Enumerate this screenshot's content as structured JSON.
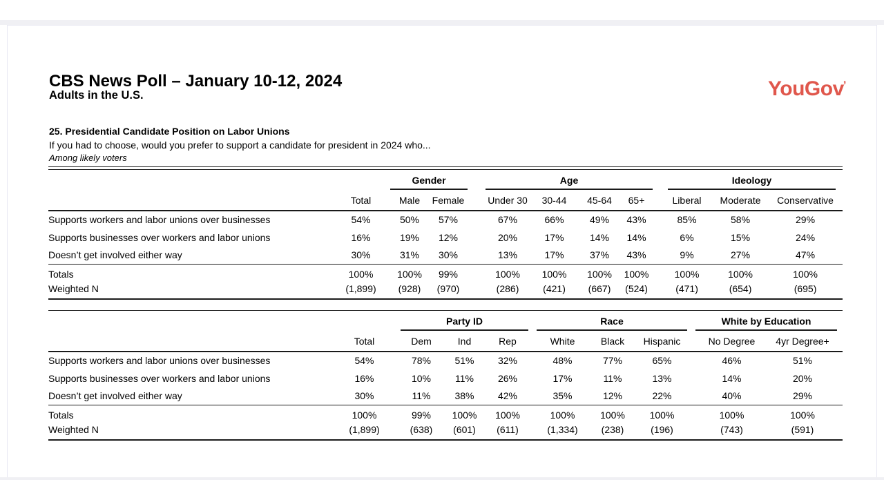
{
  "page": {
    "title": "CBS News Poll – January 10-12, 2024",
    "subtitle": "Adults in the U.S.",
    "logo_text": "YouGov",
    "logo_mark": "’",
    "logo_color": "#e0574c"
  },
  "question": {
    "number_title": "25. Presidential Candidate Position on Labor Unions",
    "text": "If you had to choose, would you prefer to support a candidate for president in 2024 who...",
    "population": "Among likely voters"
  },
  "tables": [
    {
      "name": "gender-age-ideology",
      "groups": [
        {
          "label": "",
          "cols": [
            "Total"
          ]
        },
        {
          "label": "Gender",
          "cols": [
            "Male",
            "Female"
          ]
        },
        {
          "label": "Age",
          "cols": [
            "Under 30",
            "30-44",
            "45-64",
            "65+"
          ]
        },
        {
          "label": "Ideology",
          "cols": [
            "Liberal",
            "Moderate",
            "Conservative"
          ]
        }
      ],
      "rows": [
        {
          "label": "Supports workers and labor unions over businesses",
          "values": [
            "54%",
            "50%",
            "57%",
            "67%",
            "66%",
            "49%",
            "43%",
            "85%",
            "58%",
            "29%"
          ]
        },
        {
          "label": "Supports businesses over workers and labor unions",
          "values": [
            "16%",
            "19%",
            "12%",
            "20%",
            "17%",
            "14%",
            "14%",
            "6%",
            "15%",
            "24%"
          ]
        },
        {
          "label": "Doesn’t get involved either way",
          "values": [
            "30%",
            "31%",
            "30%",
            "13%",
            "17%",
            "37%",
            "43%",
            "9%",
            "27%",
            "47%"
          ]
        }
      ],
      "totals": {
        "label": "Totals",
        "values": [
          "100%",
          "100%",
          "99%",
          "100%",
          "100%",
          "100%",
          "100%",
          "100%",
          "100%",
          "100%"
        ]
      },
      "weighted_n": {
        "label": "Weighted N",
        "values": [
          "(1,899)",
          "(928)",
          "(970)",
          "(286)",
          "(421)",
          "(667)",
          "(524)",
          "(471)",
          "(654)",
          "(695)"
        ]
      }
    },
    {
      "name": "party-race-education",
      "groups": [
        {
          "label": "",
          "cols": [
            "Total"
          ]
        },
        {
          "label": "Party ID",
          "cols": [
            "Dem",
            "Ind",
            "Rep"
          ]
        },
        {
          "label": "Race",
          "cols": [
            "White",
            "Black",
            "Hispanic"
          ]
        },
        {
          "label": "White by Education",
          "cols": [
            "No Degree",
            "4yr Degree+"
          ]
        }
      ],
      "rows": [
        {
          "label": "Supports workers and labor unions over businesses",
          "values": [
            "54%",
            "78%",
            "51%",
            "32%",
            "48%",
            "77%",
            "65%",
            "46%",
            "51%"
          ]
        },
        {
          "label": "Supports businesses over workers and labor unions",
          "values": [
            "16%",
            "10%",
            "11%",
            "26%",
            "17%",
            "11%",
            "13%",
            "14%",
            "20%"
          ]
        },
        {
          "label": "Doesn’t get involved either way",
          "values": [
            "30%",
            "11%",
            "38%",
            "42%",
            "35%",
            "12%",
            "22%",
            "40%",
            "29%"
          ]
        }
      ],
      "totals": {
        "label": "Totals",
        "values": [
          "100%",
          "99%",
          "100%",
          "100%",
          "100%",
          "100%",
          "100%",
          "100%",
          "100%"
        ]
      },
      "weighted_n": {
        "label": "Weighted N",
        "values": [
          "(1,899)",
          "(638)",
          "(601)",
          "(611)",
          "(1,334)",
          "(238)",
          "(196)",
          "(743)",
          "(591)"
        ]
      }
    }
  ]
}
